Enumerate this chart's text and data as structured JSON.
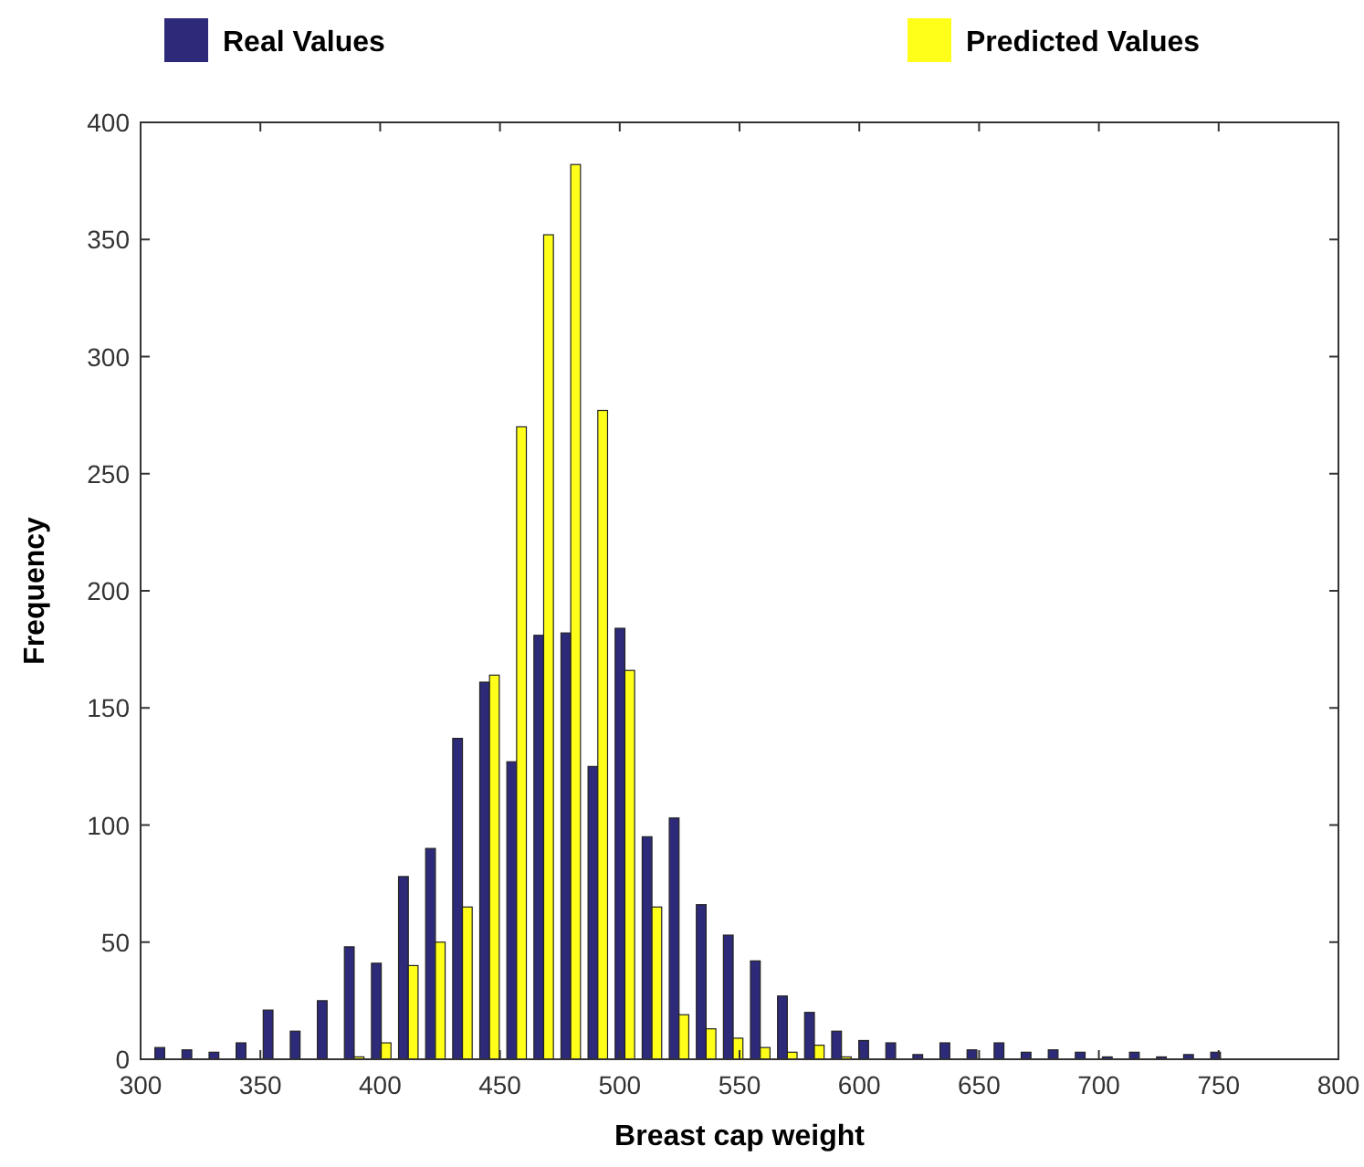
{
  "chart_data": {
    "type": "histogram",
    "xlabel": "Breast cap weight",
    "ylabel": "Frequency",
    "bins": [
      304.4,
      315.7,
      327.0,
      338.3,
      349.6,
      360.9,
      372.2,
      383.5,
      394.8,
      406.1,
      417.4,
      428.7,
      440.0,
      451.3,
      462.6,
      473.9,
      485.2,
      496.5,
      507.8,
      519.1,
      530.4,
      541.7,
      553.0,
      564.3,
      575.6,
      586.9,
      598.2,
      609.5,
      620.8,
      632.1,
      643.4,
      654.7,
      666.0,
      677.3,
      688.6,
      699.9,
      711.2,
      722.5,
      733.8,
      745.1,
      756.4
    ],
    "series": [
      {
        "name": "Real Values",
        "color": "#2e2a7a",
        "values": [
          5,
          4,
          3,
          7,
          21,
          12,
          25,
          48,
          41,
          78,
          90,
          137,
          161,
          127,
          181,
          182,
          125,
          184,
          95,
          103,
          66,
          53,
          42,
          27,
          20,
          12,
          8,
          7,
          2,
          7,
          4,
          7,
          3,
          4,
          3,
          1,
          3,
          1,
          2,
          3
        ]
      },
      {
        "name": "Predicted Values",
        "color": "#ffff1a",
        "values": [
          0,
          0,
          0,
          0,
          0,
          0,
          0,
          1,
          7,
          40,
          50,
          65,
          164,
          270,
          352,
          382,
          277,
          166,
          65,
          19,
          13,
          9,
          5,
          3,
          6,
          1,
          0,
          0,
          0,
          0,
          0,
          0,
          0,
          0,
          0,
          0,
          0,
          0,
          0,
          0
        ]
      }
    ],
    "xlim": [
      300,
      800
    ],
    "xticks": [
      300,
      350,
      400,
      450,
      500,
      550,
      600,
      650,
      700,
      750,
      800
    ],
    "ylim": [
      0,
      400
    ],
    "yticks": [
      0,
      50,
      100,
      150,
      200,
      250,
      300,
      350,
      400
    ],
    "grid": false,
    "legend": "top"
  }
}
